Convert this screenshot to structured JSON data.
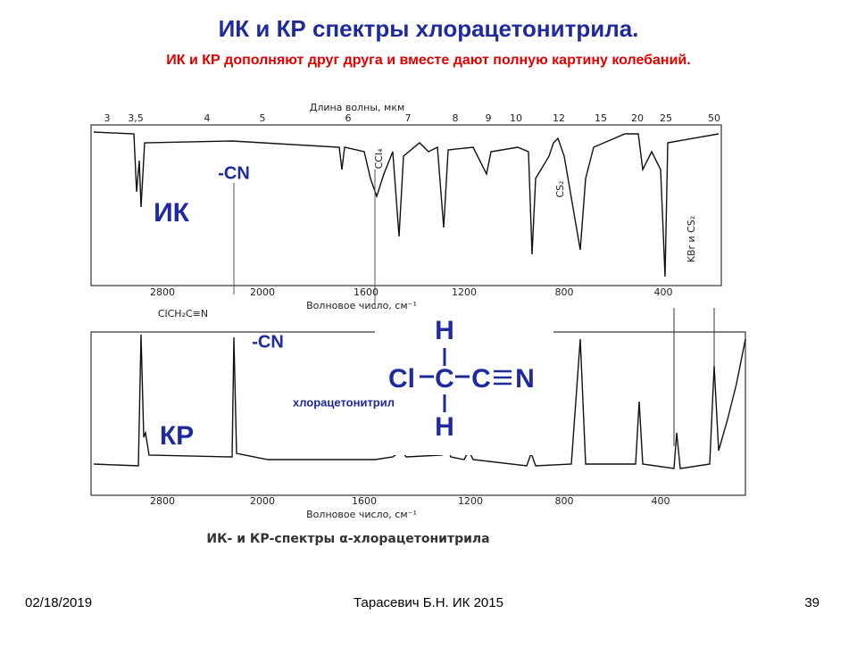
{
  "header": {
    "title": "ИК и КР спектры хлорацетонитрила.",
    "subtitle": "ИК и КР дополняют друг друга и вместе дают полную картину колебаний."
  },
  "figure": {
    "ir": {
      "top_axis_label": "Длина волны, мкм",
      "wavelength_ticks": [
        "3",
        "3,5",
        "4",
        "5",
        "6",
        "7",
        "8",
        "9",
        "10",
        "12",
        "15",
        "20",
        "25",
        "50"
      ],
      "wavenumber_ticks": [
        "2800",
        "2000",
        "1600",
        "1200",
        "800",
        "400"
      ],
      "x_axis_label": "Волновое число, см⁻¹",
      "compound": "ClCH₂C≡N",
      "group_label": "-CN",
      "spectrum_label": "ИК",
      "solvent_labels": [
        "CCl₄",
        "CS₂",
        "KBr и CS₂"
      ]
    },
    "raman": {
      "group_label": "-CN",
      "spectrum_label": "КР",
      "wavenumber_ticks": [
        "2800",
        "2000",
        "1600",
        "1200",
        "800",
        "400"
      ],
      "x_axis_label": "Волновое число, см⁻¹"
    },
    "caption": "ИК- и КР-спектры α-хлорацетонитрила"
  },
  "structure": {
    "top": "H",
    "atoms": [
      "Cl",
      "C",
      "C",
      "N"
    ],
    "bottom": "H",
    "name": "хлорацетонитрил"
  },
  "footer": {
    "date": "02/18/2019",
    "author": "Тарасевич Б.Н.  ИК 2015",
    "page": "39"
  }
}
